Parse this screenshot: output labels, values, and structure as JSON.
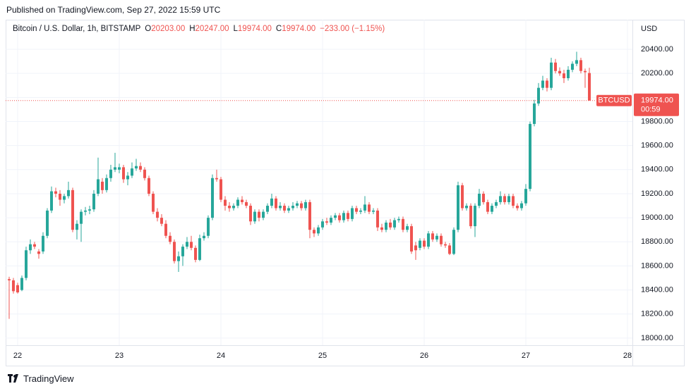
{
  "header": {
    "published": "Published on TradingView.com, Sep 27, 2022 15:59 UTC"
  },
  "footer": {
    "brand": "TradingView"
  },
  "chart_data": {
    "type": "candlestick",
    "title": "Bitcoin / U.S. Dollar, 1h, BITSTAMP",
    "ohlc": [
      {
        "label": "O",
        "value": "20203.00"
      },
      {
        "label": "H",
        "value": "20247.00"
      },
      {
        "label": "L",
        "value": "19974.00"
      },
      {
        "label": "C",
        "value": "19974.00"
      }
    ],
    "change": "−233.00 (−1.15%)",
    "y_axis_label": "USD",
    "symbol": "BTCUSD",
    "last_price_label": "19974.00",
    "countdown": "00:59",
    "up_color": "#26a69a",
    "down_color": "#ef5350",
    "grid": true,
    "xlim": [
      -2.83,
      145.17
    ],
    "xticks": [
      {
        "value": 0,
        "label": "22"
      },
      {
        "value": 24,
        "label": "23"
      },
      {
        "value": 48,
        "label": "24"
      },
      {
        "value": 72,
        "label": "25"
      },
      {
        "value": 96,
        "label": "26"
      },
      {
        "value": 120,
        "label": "27"
      },
      {
        "value": 144,
        "label": "28"
      }
    ],
    "ylim": [
      17941,
      20646
    ],
    "yticks": [
      {
        "value": 18000,
        "label": "18000.00"
      },
      {
        "value": 18200,
        "label": "18200.00"
      },
      {
        "value": 18400,
        "label": "18400.00"
      },
      {
        "value": 18600,
        "label": "18600.00"
      },
      {
        "value": 18800,
        "label": "18800.00"
      },
      {
        "value": 19000,
        "label": "19000.00"
      },
      {
        "value": 19200,
        "label": "19200.00"
      },
      {
        "value": 19400,
        "label": "19400.00"
      },
      {
        "value": 19600,
        "label": "19600.00"
      },
      {
        "value": 19800,
        "label": "19800.00"
      },
      {
        "value": 20000,
        "label": "20000.00"
      },
      {
        "value": 20200,
        "label": "20200.00"
      },
      {
        "value": 20400,
        "label": "20400.00"
      }
    ],
    "x": [
      -2,
      -1,
      0,
      1,
      2,
      3,
      4,
      5,
      6,
      7,
      8,
      9,
      10,
      11,
      12,
      13,
      14,
      15,
      16,
      17,
      18,
      19,
      20,
      21,
      22,
      23,
      24,
      25,
      26,
      27,
      28,
      29,
      30,
      31,
      32,
      33,
      34,
      35,
      36,
      37,
      38,
      39,
      40,
      41,
      42,
      43,
      44,
      45,
      46,
      47,
      48,
      49,
      50,
      51,
      52,
      53,
      54,
      55,
      56,
      57,
      58,
      59,
      60,
      61,
      62,
      63,
      64,
      65,
      66,
      67,
      68,
      69,
      70,
      71,
      72,
      73,
      74,
      75,
      76,
      77,
      78,
      79,
      80,
      81,
      82,
      83,
      84,
      85,
      86,
      87,
      88,
      89,
      90,
      91,
      92,
      93,
      94,
      95,
      96,
      97,
      98,
      99,
      100,
      101,
      102,
      103,
      104,
      105,
      106,
      107,
      108,
      109,
      110,
      111,
      112,
      113,
      114,
      115,
      116,
      117,
      118,
      119,
      120,
      121,
      122,
      123,
      124,
      125,
      126,
      127,
      128,
      129,
      130,
      131,
      132,
      133,
      134,
      135
    ],
    "candles": [
      [
        18490,
        18510,
        18160,
        18480
      ],
      [
        18480,
        18500,
        18370,
        18390
      ],
      [
        18440,
        18460,
        18370,
        18380
      ],
      [
        18400,
        18520,
        18390,
        18500
      ],
      [
        18500,
        18760,
        18480,
        18730
      ],
      [
        18730,
        18820,
        18700,
        18780
      ],
      [
        18780,
        18800,
        18740,
        18760
      ],
      [
        18720,
        18740,
        18660,
        18700
      ],
      [
        18720,
        18880,
        18700,
        18850
      ],
      [
        18850,
        19080,
        18830,
        19060
      ],
      [
        19060,
        19260,
        19040,
        19220
      ],
      [
        19220,
        19250,
        19170,
        19200
      ],
      [
        19200,
        19230,
        19100,
        19150
      ],
      [
        19150,
        19200,
        19120,
        19180
      ],
      [
        19180,
        19300,
        19160,
        19230
      ],
      [
        19230,
        19250,
        18880,
        18900
      ],
      [
        18900,
        18980,
        18820,
        18950
      ],
      [
        18950,
        19070,
        18800,
        19050
      ],
      [
        19050,
        19090,
        19020,
        19060
      ],
      [
        19060,
        19100,
        19030,
        19070
      ],
      [
        19070,
        19230,
        19050,
        19200
      ],
      [
        19200,
        19500,
        19180,
        19320
      ],
      [
        19300,
        19330,
        19200,
        19230
      ],
      [
        19230,
        19360,
        19210,
        19330
      ],
      [
        19330,
        19440,
        19300,
        19400
      ],
      [
        19400,
        19540,
        19380,
        19420
      ],
      [
        19400,
        19450,
        19370,
        19420
      ],
      [
        19420,
        19440,
        19290,
        19320
      ],
      [
        19320,
        19380,
        19270,
        19350
      ],
      [
        19350,
        19460,
        19330,
        19410
      ],
      [
        19410,
        19490,
        19390,
        19430
      ],
      [
        19430,
        19460,
        19380,
        19400
      ],
      [
        19400,
        19420,
        19310,
        19330
      ],
      [
        19330,
        19350,
        19180,
        19200
      ],
      [
        19200,
        19220,
        19030,
        19050
      ],
      [
        19050,
        19080,
        18970,
        19000
      ],
      [
        19000,
        19030,
        18930,
        18950
      ],
      [
        18950,
        18980,
        18830,
        18850
      ],
      [
        18850,
        18880,
        18780,
        18800
      ],
      [
        18800,
        18820,
        18620,
        18640
      ],
      [
        18640,
        18720,
        18550,
        18680
      ],
      [
        18680,
        18780,
        18600,
        18760
      ],
      [
        18760,
        18840,
        18740,
        18800
      ],
      [
        18800,
        18850,
        18730,
        18750
      ],
      [
        18750,
        18770,
        18630,
        18650
      ],
      [
        18650,
        18860,
        18640,
        18830
      ],
      [
        18830,
        18880,
        18810,
        18850
      ],
      [
        18850,
        19020,
        18830,
        19000
      ],
      [
        19000,
        19360,
        18980,
        19330
      ],
      [
        19330,
        19400,
        19300,
        19320
      ],
      [
        19320,
        19340,
        19130,
        19150
      ],
      [
        19150,
        19180,
        19060,
        19100
      ],
      [
        19100,
        19130,
        19050,
        19080
      ],
      [
        19080,
        19120,
        19060,
        19100
      ],
      [
        19100,
        19170,
        19080,
        19150
      ],
      [
        19150,
        19180,
        19110,
        19130
      ],
      [
        19130,
        19150,
        19080,
        19100
      ],
      [
        19100,
        19120,
        18940,
        18970
      ],
      [
        18970,
        19070,
        18950,
        19050
      ],
      [
        19050,
        19070,
        18970,
        19000
      ],
      [
        19000,
        19070,
        18980,
        19050
      ],
      [
        19050,
        19120,
        19030,
        19100
      ],
      [
        19100,
        19200,
        19080,
        19160
      ],
      [
        19160,
        19180,
        19060,
        19080
      ],
      [
        19080,
        19130,
        19060,
        19100
      ],
      [
        19100,
        19120,
        19040,
        19060
      ],
      [
        19060,
        19100,
        19040,
        19080
      ],
      [
        19080,
        19130,
        19060,
        19100
      ],
      [
        19100,
        19140,
        19080,
        19120
      ],
      [
        19120,
        19140,
        19060,
        19080
      ],
      [
        19080,
        19150,
        19060,
        19130
      ],
      [
        19130,
        19150,
        18830,
        18900
      ],
      [
        18900,
        18920,
        18840,
        18870
      ],
      [
        18870,
        18940,
        18850,
        18920
      ],
      [
        18920,
        18990,
        18900,
        18970
      ],
      [
        18970,
        19000,
        18940,
        18960
      ],
      [
        18960,
        19020,
        18940,
        19000
      ],
      [
        19000,
        19040,
        18980,
        19020
      ],
      [
        19020,
        19040,
        18960,
        18980
      ],
      [
        18980,
        19060,
        18960,
        19040
      ],
      [
        19040,
        19060,
        18970,
        18990
      ],
      [
        18990,
        19100,
        18970,
        19080
      ],
      [
        19080,
        19100,
        19030,
        19050
      ],
      [
        19050,
        19080,
        19030,
        19060
      ],
      [
        19060,
        19180,
        19040,
        19110
      ],
      [
        19110,
        19130,
        19030,
        19050
      ],
      [
        19050,
        19080,
        19030,
        19060
      ],
      [
        19060,
        19080,
        18890,
        18920
      ],
      [
        18920,
        18950,
        18880,
        18900
      ],
      [
        18900,
        18980,
        18880,
        18960
      ],
      [
        18960,
        18990,
        18900,
        18920
      ],
      [
        18920,
        19000,
        18900,
        18980
      ],
      [
        18980,
        19010,
        18960,
        18990
      ],
      [
        18990,
        19010,
        18880,
        18900
      ],
      [
        18900,
        18950,
        18880,
        18930
      ],
      [
        18930,
        18950,
        18700,
        18720
      ],
      [
        18770,
        18800,
        18650,
        18730
      ],
      [
        18750,
        18830,
        18730,
        18810
      ],
      [
        18810,
        18830,
        18740,
        18760
      ],
      [
        18760,
        18890,
        18740,
        18870
      ],
      [
        18870,
        18890,
        18800,
        18820
      ],
      [
        18820,
        18870,
        18800,
        18850
      ],
      [
        18850,
        18870,
        18760,
        18780
      ],
      [
        18780,
        18800,
        18750,
        18770
      ],
      [
        18770,
        18790,
        18690,
        18700
      ],
      [
        18700,
        18920,
        18690,
        18900
      ],
      [
        18900,
        19300,
        18880,
        19270
      ],
      [
        19270,
        19290,
        19060,
        19080
      ],
      [
        19080,
        19120,
        19060,
        19100
      ],
      [
        19100,
        19120,
        18910,
        18930
      ],
      [
        18930,
        19120,
        18840,
        19100
      ],
      [
        19100,
        19240,
        19080,
        19200
      ],
      [
        19200,
        19220,
        19110,
        19130
      ],
      [
        19130,
        19150,
        19030,
        19050
      ],
      [
        19050,
        19120,
        19030,
        19100
      ],
      [
        19100,
        19150,
        19080,
        19130
      ],
      [
        19130,
        19220,
        19110,
        19180
      ],
      [
        19180,
        19200,
        19110,
        19130
      ],
      [
        19130,
        19200,
        19110,
        19180
      ],
      [
        19180,
        19200,
        19080,
        19100
      ],
      [
        19100,
        19120,
        19060,
        19080
      ],
      [
        19080,
        19140,
        19060,
        19120
      ],
      [
        19120,
        19280,
        19100,
        19240
      ],
      [
        19240,
        19800,
        19220,
        19780
      ],
      [
        19780,
        19980,
        19760,
        19950
      ],
      [
        19950,
        20120,
        19930,
        20080
      ],
      [
        20080,
        20180,
        20060,
        20140
      ],
      [
        20140,
        20160,
        20050,
        20080
      ],
      [
        20080,
        20330,
        20060,
        20290
      ],
      [
        20290,
        20320,
        20200,
        20220
      ],
      [
        20220,
        20250,
        20180,
        20200
      ],
      [
        20200,
        20230,
        20120,
        20160
      ],
      [
        20160,
        20260,
        20140,
        20230
      ],
      [
        20230,
        20300,
        20210,
        20280
      ],
      [
        20280,
        20380,
        20260,
        20310
      ],
      [
        20310,
        20330,
        20200,
        20220
      ],
      [
        20220,
        20240,
        20080,
        20210
      ],
      [
        20203,
        20247,
        19974,
        19974
      ]
    ]
  }
}
